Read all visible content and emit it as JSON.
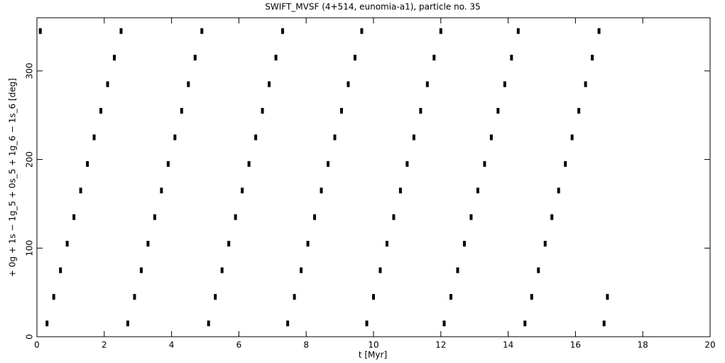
{
  "chart_data": {
    "type": "scatter",
    "title": "SWIFT_MVSF (4+514, eunomia-a1), particle no. 35",
    "x_label": "t [Myr]",
    "y_label": "+ 0g + 1s − 1g_5 + 0s_5 + 1g_6 − 1s_6 [deg]",
    "xlim": [
      0,
      20
    ],
    "xticks": [
      0,
      2,
      4,
      6,
      8,
      10,
      12,
      14,
      16,
      18,
      20
    ],
    "ylim": [
      0,
      360
    ],
    "yticks": [
      0,
      100,
      200,
      300
    ],
    "color": "#000000",
    "x": [
      0.1,
      0.3,
      0.5,
      0.7,
      0.9,
      1.1,
      1.3,
      1.5,
      1.7,
      1.9,
      2.1,
      2.3,
      2.5,
      2.7,
      2.9,
      3.1,
      3.3,
      3.5,
      3.7,
      3.9,
      4.1,
      4.3,
      4.5,
      4.7,
      4.9,
      5.1,
      5.3,
      5.5,
      5.7,
      5.9,
      6.1,
      6.3,
      6.5,
      6.7,
      6.9,
      7.1,
      7.3,
      7.45,
      7.65,
      7.85,
      8.05,
      8.25,
      8.45,
      8.65,
      8.85,
      9.05,
      9.25,
      9.45,
      9.65,
      9.8,
      10.0,
      10.2,
      10.4,
      10.6,
      10.8,
      11.0,
      11.2,
      11.4,
      11.6,
      11.8,
      12.0,
      12.1,
      12.3,
      12.5,
      12.7,
      12.9,
      13.1,
      13.3,
      13.5,
      13.7,
      13.9,
      14.1,
      14.3,
      14.5,
      14.7,
      14.9,
      15.1,
      15.3,
      15.5,
      15.7,
      15.9,
      16.1,
      16.3,
      16.5,
      16.7,
      16.85,
      16.95
    ],
    "values": [
      345,
      15,
      45,
      75,
      105,
      135,
      165,
      195,
      225,
      255,
      285,
      315,
      345,
      15,
      45,
      75,
      105,
      135,
      165,
      195,
      225,
      255,
      285,
      315,
      345,
      15,
      45,
      75,
      105,
      135,
      165,
      195,
      225,
      255,
      285,
      315,
      345,
      15,
      45,
      75,
      105,
      135,
      165,
      195,
      225,
      255,
      285,
      315,
      345,
      15,
      45,
      75,
      105,
      135,
      165,
      195,
      225,
      255,
      285,
      315,
      345,
      15,
      45,
      75,
      105,
      135,
      165,
      195,
      225,
      255,
      285,
      315,
      345,
      15,
      45,
      75,
      105,
      135,
      165,
      195,
      225,
      255,
      285,
      315,
      345,
      15,
      45
    ]
  }
}
